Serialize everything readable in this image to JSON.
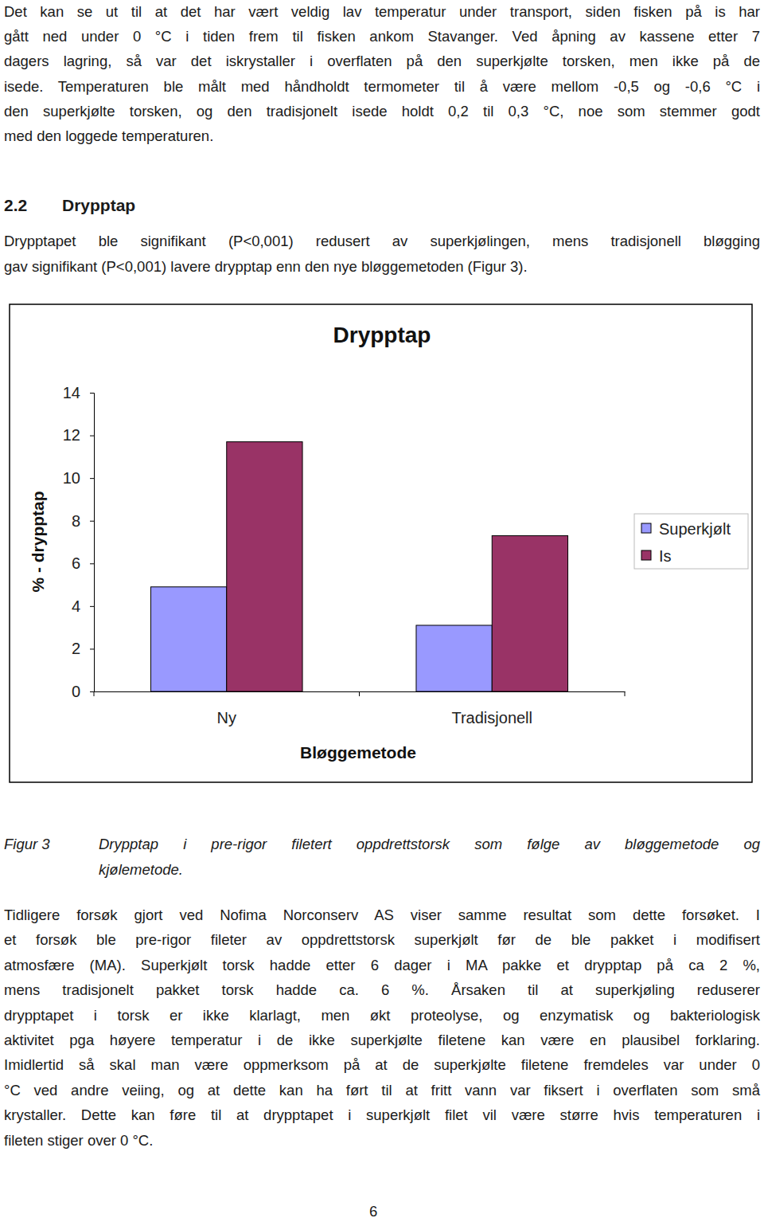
{
  "intro_paragraph": [
    "Det kan se ut til at det har vært veldig lav temperatur under transport, siden fisken på is har",
    "gått ned under 0 °C i tiden frem til fisken ankom Stavanger. Ved åpning av kassene etter 7",
    "dagers lagring, så var det iskrystaller i overflaten på den superkjølte torsken, men ikke på de",
    "isede. Temperaturen ble målt med håndholdt termometer til å være mellom -0,5 og -0,6 °C i",
    "den superkjølte torsken, og den tradisjonelt isede holdt 0,2 til 0,3 °C, noe som stemmer godt",
    "med den loggede temperaturen."
  ],
  "section": {
    "number": "2.2",
    "title": "Drypptap"
  },
  "section_paragraph": [
    "Drypptapet ble signifikant (P<0,001) redusert av superkjølingen, mens tradisjonell bløgging",
    "gav signifikant (P<0,001) lavere drypptap enn den nye bløggemetoden (Figur 3)."
  ],
  "chart_data": {
    "type": "bar",
    "title": "Drypptap",
    "x_label": "Bløggemetode",
    "y_label": "% - drypptap",
    "categories": [
      "Ny",
      "Tradisjonell"
    ],
    "series": [
      {
        "name": "Superkjølt",
        "color": "#9999ff",
        "values": [
          4.9,
          3.1
        ]
      },
      {
        "name": "Is",
        "color": "#993366",
        "values": [
          11.7,
          7.3
        ]
      }
    ],
    "ylim": [
      0,
      14
    ],
    "yticks": [
      0,
      2,
      4,
      6,
      8,
      10,
      12,
      14
    ],
    "grid": false,
    "legend": "right"
  },
  "figure_caption": {
    "label": "Figur 3",
    "lines": [
      "Drypptap i pre-rigor filetert oppdrettstorsk som følge av bløggemetode og",
      "kjølemetode."
    ]
  },
  "discussion_paragraph": [
    "Tidligere forsøk gjort ved Nofima Norconserv AS viser samme resultat som dette forsøket. I",
    "et forsøk ble pre-rigor fileter av oppdrettstorsk superkjølt før de ble pakket i modifisert",
    "atmosfære (MA).  Superkjølt torsk hadde etter 6 dager i MA pakke et drypptap på ca 2 %,",
    "mens tradisjonelt pakket torsk hadde ca. 6 %. Årsaken til at superkjøling reduserer",
    "drypptapet i torsk er ikke klarlagt, men økt proteolyse, og enzymatisk og bakteriologisk",
    "aktivitet pga høyere temperatur i de ikke superkjølte filetene kan være en plausibel forklaring.",
    "Imidlertid så skal man være oppmerksom på at de superkjølte filetene fremdeles var under 0",
    "°C ved andre veiing, og at dette kan ha ført til at fritt vann var fiksert i overflaten som små",
    "krystaller. Dette kan føre til at drypptapet i superkjølt filet vil være større hvis temperaturen i",
    "fileten stiger over 0 °C."
  ],
  "page_number": "6"
}
